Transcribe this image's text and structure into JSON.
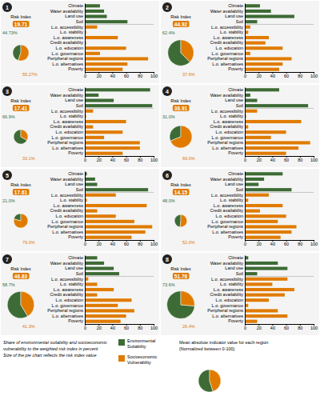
{
  "chart_data": [
    {
      "type": "pie",
      "title": "1",
      "annotations": [
        "Risk Index",
        "19.71"
      ],
      "values": [
        44.73,
        55.27
      ],
      "value_labels": [
        "44.73%",
        "55.27%"
      ],
      "colors": [
        "#3d6b35",
        "#e07b00"
      ],
      "size": 0.36
    },
    {
      "type": "bar",
      "orientation": "horizontal",
      "categories": [
        "Climate",
        "Water availability",
        "Land use",
        "Soil",
        "L.o. accessibility",
        "L.o. stability",
        "L.o. awareness",
        "Credit availability",
        "L.o. education",
        "L.o. governance",
        "Peripheral regions",
        "L.o. alternatives",
        "Poverty"
      ],
      "values": [
        22,
        28,
        32,
        62,
        18,
        2,
        48,
        2,
        60,
        22,
        92,
        62,
        55
      ],
      "colors": [
        "#3d6b35",
        "#3d6b35",
        "#3d6b35",
        "#3d6b35",
        "#e07b00",
        "#e07b00",
        "#e07b00",
        "#e07b00",
        "#e07b00",
        "#e07b00",
        "#e07b00",
        "#e07b00",
        "#e07b00"
      ],
      "xlim": [
        0,
        100
      ],
      "xticks": [
        0,
        20,
        40,
        60,
        80,
        100
      ]
    },
    {
      "type": "pie",
      "title": "2",
      "annotations": [
        "Risk Index",
        "44.92"
      ],
      "values": [
        62.4,
        37.6
      ],
      "value_labels": [
        "62.4%",
        "37.6%"
      ],
      "colors": [
        "#3d6b35",
        "#e07b00"
      ],
      "size": 0.58
    },
    {
      "type": "bar",
      "orientation": "horizontal",
      "categories": [
        "Climate",
        "Water availability",
        "Land use",
        "Soil",
        "L.o. accessibility",
        "L.o. stability",
        "L.o. awareness",
        "Credit availability",
        "L.o. education",
        "L.o. governance",
        "Peripheral regions",
        "L.o. alternatives",
        "Poverty"
      ],
      "values": [
        22,
        38,
        72,
        18,
        8,
        5,
        35,
        30,
        55,
        8,
        68,
        55,
        50
      ],
      "colors": [
        "#3d6b35",
        "#3d6b35",
        "#3d6b35",
        "#3d6b35",
        "#e07b00",
        "#e07b00",
        "#e07b00",
        "#e07b00",
        "#e07b00",
        "#e07b00",
        "#e07b00",
        "#e07b00",
        "#e07b00"
      ],
      "xlim": [
        0,
        100
      ],
      "xticks": [
        0,
        20,
        40,
        60,
        80,
        100
      ]
    },
    {
      "type": "pie",
      "title": "3",
      "annotations": [
        "Risk Index",
        "17.41"
      ],
      "values": [
        66.9,
        33.1
      ],
      "value_labels": [
        "66.9%",
        "33.1%"
      ],
      "colors": [
        "#3d6b35",
        "#e07b00"
      ],
      "size": 0.32
    },
    {
      "type": "bar",
      "orientation": "horizontal",
      "categories": [
        "Climate",
        "Water availability",
        "Land use",
        "Soil",
        "L.o. accessibility",
        "L.o. stability",
        "L.o. awareness",
        "Credit availability",
        "L.o. education",
        "L.o. governance",
        "Peripheral regions",
        "L.o. alternatives",
        "Poverty"
      ],
      "values": [
        95,
        20,
        42,
        98,
        12,
        2,
        60,
        12,
        55,
        28,
        80,
        80,
        55
      ],
      "colors": [
        "#3d6b35",
        "#3d6b35",
        "#3d6b35",
        "#3d6b35",
        "#e07b00",
        "#e07b00",
        "#e07b00",
        "#e07b00",
        "#e07b00",
        "#e07b00",
        "#e07b00",
        "#e07b00",
        "#e07b00"
      ],
      "xlim": [
        0,
        100
      ],
      "xticks": [
        0,
        20,
        40,
        60,
        80,
        100
      ]
    },
    {
      "type": "pie",
      "title": "4",
      "annotations": [
        "Risk Index",
        "38.91"
      ],
      "values": [
        31.0,
        69.0
      ],
      "value_labels": [
        "31.0%",
        "69.0%"
      ],
      "colors": [
        "#3d6b35",
        "#e07b00"
      ],
      "size": 0.5
    },
    {
      "type": "bar",
      "orientation": "horizontal",
      "categories": [
        "Climate",
        "Water availability",
        "Land use",
        "Soil",
        "L.o. accessibility",
        "L.o. stability",
        "L.o. awareness",
        "Credit availability",
        "L.o. education",
        "L.o. governance",
        "Peripheral regions",
        "L.o. alternatives",
        "Poverty"
      ],
      "values": [
        50,
        8,
        18,
        92,
        18,
        2,
        82,
        5,
        60,
        38,
        95,
        78,
        60
      ],
      "colors": [
        "#3d6b35",
        "#3d6b35",
        "#3d6b35",
        "#3d6b35",
        "#e07b00",
        "#e07b00",
        "#e07b00",
        "#e07b00",
        "#e07b00",
        "#e07b00",
        "#e07b00",
        "#e07b00",
        "#e07b00"
      ],
      "xlim": [
        0,
        100
      ],
      "xticks": [
        0,
        20,
        40,
        60,
        80,
        100
      ]
    },
    {
      "type": "pie",
      "title": "5",
      "annotations": [
        "Risk Index",
        "17.61"
      ],
      "values": [
        21.0,
        79.0
      ],
      "value_labels": [
        "21.0%",
        "79.0%"
      ],
      "colors": [
        "#3d6b35",
        "#e07b00"
      ],
      "size": 0.32
    },
    {
      "type": "bar",
      "orientation": "horizontal",
      "categories": [
        "Climate",
        "Water availability",
        "Land use",
        "Soil",
        "L.o. accessibility",
        "L.o. stability",
        "L.o. awareness",
        "Credit availability",
        "L.o. education",
        "L.o. governance",
        "Peripheral regions",
        "L.o. alternatives",
        "Poverty"
      ],
      "values": [
        3,
        15,
        18,
        92,
        45,
        3,
        90,
        18,
        45,
        72,
        98,
        88,
        68
      ],
      "colors": [
        "#3d6b35",
        "#3d6b35",
        "#3d6b35",
        "#3d6b35",
        "#e07b00",
        "#e07b00",
        "#e07b00",
        "#e07b00",
        "#e07b00",
        "#e07b00",
        "#e07b00",
        "#e07b00",
        "#e07b00"
      ],
      "xlim": [
        0,
        100
      ],
      "xticks": [
        0,
        20,
        40,
        60,
        80,
        100
      ]
    },
    {
      "type": "pie",
      "title": "6",
      "annotations": [
        "Risk Index",
        "14.15"
      ],
      "values": [
        48.0,
        52.0
      ],
      "value_labels": [
        "48.0%",
        "52.0%"
      ],
      "colors": [
        "#3d6b35",
        "#e07b00"
      ],
      "size": 0.28
    },
    {
      "type": "bar",
      "orientation": "horizontal",
      "categories": [
        "Climate",
        "Water availability",
        "Land use",
        "Soil",
        "L.o. accessibility",
        "L.o. stability",
        "L.o. awareness",
        "Credit availability",
        "L.o. education",
        "L.o. governance",
        "Peripheral regions",
        "L.o. alternatives",
        "Poverty"
      ],
      "values": [
        55,
        28,
        20,
        68,
        35,
        5,
        55,
        22,
        60,
        48,
        75,
        68,
        52
      ],
      "colors": [
        "#3d6b35",
        "#3d6b35",
        "#3d6b35",
        "#3d6b35",
        "#e07b00",
        "#e07b00",
        "#e07b00",
        "#e07b00",
        "#e07b00",
        "#e07b00",
        "#e07b00",
        "#e07b00",
        "#e07b00"
      ],
      "xlim": [
        0,
        100
      ],
      "xticks": [
        0,
        20,
        40,
        60,
        80,
        100
      ]
    },
    {
      "type": "pie",
      "title": "7",
      "annotations": [
        "Risk Index",
        "46.83"
      ],
      "values": [
        58.7,
        41.3
      ],
      "value_labels": [
        "58.7%",
        "41.3%"
      ],
      "colors": [
        "#3d6b35",
        "#e07b00"
      ],
      "size": 0.6
    },
    {
      "type": "bar",
      "orientation": "horizontal",
      "categories": [
        "Climate",
        "Water availability",
        "Land use",
        "Soil",
        "L.o. accessibility",
        "L.o. stability",
        "L.o. awareness",
        "Credit availability",
        "L.o. education",
        "L.o. governance",
        "Peripheral regions",
        "L.o. alternatives",
        "Poverty"
      ],
      "values": [
        18,
        28,
        42,
        50,
        5,
        18,
        42,
        18,
        68,
        48,
        72,
        60,
        52
      ],
      "colors": [
        "#3d6b35",
        "#3d6b35",
        "#3d6b35",
        "#3d6b35",
        "#e07b00",
        "#e07b00",
        "#e07b00",
        "#e07b00",
        "#e07b00",
        "#e07b00",
        "#e07b00",
        "#e07b00",
        "#e07b00"
      ],
      "xlim": [
        0,
        100
      ],
      "xticks": [
        0,
        20,
        40,
        60,
        80,
        100
      ]
    },
    {
      "type": "pie",
      "title": "8",
      "annotations": [
        "Risk Index",
        "51.78"
      ],
      "values": [
        73.6,
        26.4
      ],
      "value_labels": [
        "73.6%",
        "26.4%"
      ],
      "colors": [
        "#3d6b35",
        "#e07b00"
      ],
      "size": 0.62
    },
    {
      "type": "bar",
      "orientation": "horizontal",
      "categories": [
        "Climate",
        "Water availability",
        "Land use",
        "Soil",
        "L.o. accessibility",
        "L.o. stability",
        "L.o. awareness",
        "Credit availability",
        "L.o. education",
        "L.o. governance",
        "Peripheral regions",
        "L.o. alternatives",
        "Poverty"
      ],
      "values": [
        5,
        48,
        62,
        18,
        62,
        40,
        72,
        58,
        35,
        5,
        48,
        62,
        18
      ],
      "colors": [
        "#3d6b35",
        "#3d6b35",
        "#3d6b35",
        "#3d6b35",
        "#e07b00",
        "#e07b00",
        "#e07b00",
        "#e07b00",
        "#e07b00",
        "#e07b00",
        "#e07b00",
        "#e07b00",
        "#e07b00"
      ],
      "xlim": [
        0,
        100
      ],
      "xticks": [
        0,
        20,
        40,
        60,
        80,
        100
      ]
    },
    {
      "type": "pie",
      "categories": [
        "Environmental\nSuitability",
        "Socioeconomic\nVulnerability"
      ],
      "values": [
        55,
        45
      ],
      "colors": [
        "#3d6b35",
        "#e07b00"
      ],
      "legend": "top",
      "annotations": [
        "Share of environmental suitability and socioeconomic\nvulnerability to the weighted risk index in percent\nSize of the pie chart reflects the risk index value",
        "Mean absolute indicator value for each region\n(Normalized between 0-100)"
      ]
    }
  ]
}
